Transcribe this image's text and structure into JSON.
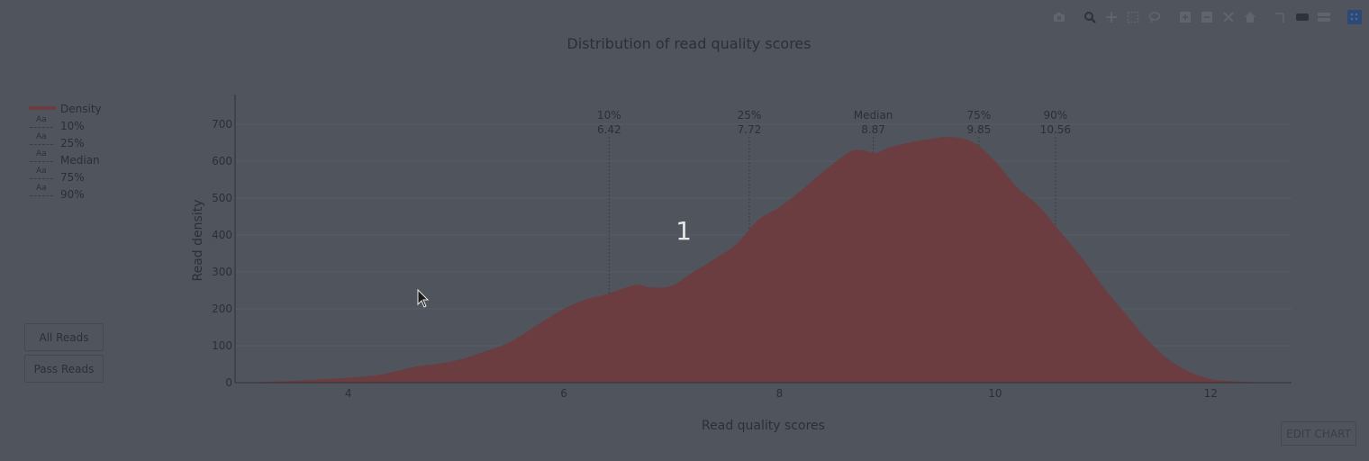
{
  "chart_data": {
    "type": "area",
    "title": "Distribution of read quality scores",
    "xlabel": "Read quality scores",
    "ylabel": "Read density",
    "xlim": [
      2.95,
      12.75
    ],
    "ylim": [
      0,
      780
    ],
    "x_ticks": [
      4,
      6,
      8,
      10,
      12
    ],
    "y_ticks": [
      0,
      100,
      200,
      300,
      400,
      500,
      600,
      700
    ],
    "grid": true,
    "legend_position": "top-left",
    "series": [
      {
        "name": "Density",
        "color": "#6b3d40",
        "x": [
          3.0,
          3.4,
          3.8,
          4.2,
          4.4,
          4.6,
          4.8,
          5.0,
          5.2,
          5.5,
          5.8,
          6.0,
          6.2,
          6.4,
          6.6,
          6.7,
          6.8,
          7.0,
          7.2,
          7.4,
          7.6,
          7.8,
          8.0,
          8.2,
          8.4,
          8.6,
          8.7,
          8.8,
          8.9,
          9.0,
          9.2,
          9.4,
          9.6,
          9.8,
          10.0,
          10.2,
          10.4,
          10.6,
          10.8,
          11.0,
          11.2,
          11.4,
          11.6,
          11.8,
          12.0,
          12.2,
          12.5
        ],
        "y": [
          0,
          4,
          10,
          18,
          28,
          42,
          50,
          60,
          78,
          110,
          165,
          200,
          225,
          240,
          260,
          265,
          258,
          262,
          300,
          335,
          375,
          440,
          475,
          520,
          570,
          615,
          630,
          628,
          622,
          635,
          650,
          660,
          665,
          650,
          600,
          530,
          480,
          410,
          340,
          260,
          190,
          120,
          65,
          30,
          10,
          4,
          0
        ]
      }
    ],
    "quantiles": [
      {
        "name": "10%",
        "label": "10%",
        "value_label": "6.42",
        "x": 6.42
      },
      {
        "name": "25%",
        "label": "25%",
        "value_label": "7.72",
        "x": 7.72
      },
      {
        "name": "Median",
        "label": "Median",
        "value_label": "8.87",
        "x": 8.87
      },
      {
        "name": "75%",
        "label": "75%",
        "value_label": "9.85",
        "x": 9.85
      },
      {
        "name": "90%",
        "label": "90%",
        "value_label": "10.56",
        "x": 10.56
      }
    ],
    "annotation": "1"
  },
  "legend": {
    "symbol_text": "Aa",
    "items": [
      "Density",
      "10%",
      "25%",
      "Median",
      "75%",
      "90%"
    ]
  },
  "buttons": {
    "all_reads": "All Reads",
    "pass_reads": "Pass Reads",
    "edit_chart": "EDIT CHART"
  },
  "modebar_icons": [
    "camera-icon",
    "zoom-icon",
    "pan-icon",
    "box-select-icon",
    "lasso-icon",
    "zoom-in-icon",
    "zoom-out-icon",
    "autoscale-icon",
    "home-icon",
    "spike-lines-icon",
    "hover-closest-icon",
    "hover-compare-icon",
    "plotly-logo-icon"
  ],
  "colors": {
    "background": "#50555d",
    "fill": "#6b3d40",
    "gridline": "#5a5f67",
    "text": "#2c2f35"
  }
}
